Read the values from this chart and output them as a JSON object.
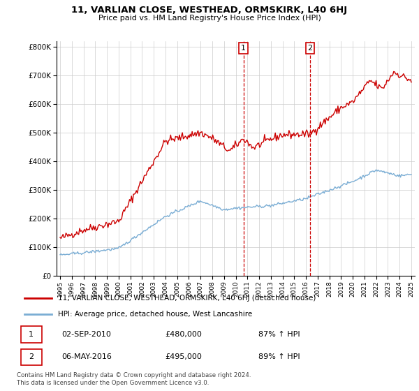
{
  "title": "11, VARLIAN CLOSE, WESTHEAD, ORMSKIRK, L40 6HJ",
  "subtitle": "Price paid vs. HM Land Registry's House Price Index (HPI)",
  "red_label": "11, VARLIAN CLOSE, WESTHEAD, ORMSKIRK, L40 6HJ (detached house)",
  "blue_label": "HPI: Average price, detached house, West Lancashire",
  "transaction1_date": "02-SEP-2010",
  "transaction1_price": "£480,000",
  "transaction1_hpi": "87% ↑ HPI",
  "transaction2_date": "06-MAY-2016",
  "transaction2_price": "£495,000",
  "transaction2_hpi": "89% ↑ HPI",
  "footer": "Contains HM Land Registry data © Crown copyright and database right 2024.\nThis data is licensed under the Open Government Licence v3.0.",
  "ylim": [
    0,
    820000
  ],
  "yticks": [
    0,
    100000,
    200000,
    300000,
    400000,
    500000,
    600000,
    700000,
    800000
  ],
  "ytick_labels": [
    "£0",
    "£100K",
    "£200K",
    "£300K",
    "£400K",
    "£500K",
    "£600K",
    "£700K",
    "£800K"
  ],
  "year_start": 1995,
  "year_end": 2025,
  "red_color": "#cc0000",
  "blue_color": "#7aadd4",
  "vline_color": "#cc0000",
  "transaction1_year": 2010.67,
  "transaction2_year": 2016.35
}
